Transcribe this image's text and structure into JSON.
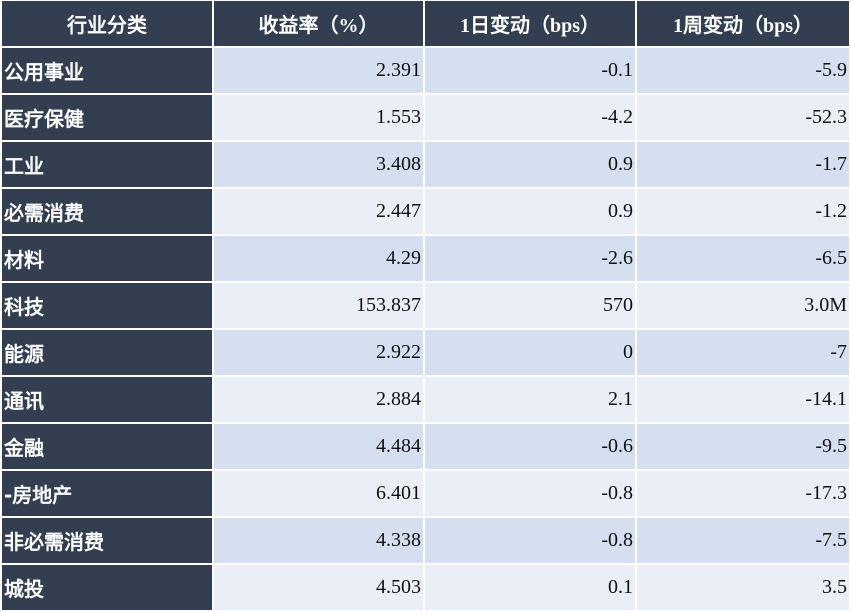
{
  "table": {
    "header": [
      "行业分类",
      "收益率（%）",
      "1日变动（bps）",
      "1周变动（bps）"
    ],
    "rows": [
      [
        "公用事业",
        "2.391",
        "-0.1",
        "-5.9"
      ],
      [
        "医疗保健",
        "1.553",
        "-4.2",
        "-52.3"
      ],
      [
        "工业",
        "3.408",
        "0.9",
        "-1.7"
      ],
      [
        "必需消费",
        "2.447",
        "0.9",
        "-1.2"
      ],
      [
        "材料",
        "4.29",
        "-2.6",
        "-6.5"
      ],
      [
        "科技",
        "153.837",
        "570",
        "3.0M"
      ],
      [
        "能源",
        "2.922",
        "0",
        "-7"
      ],
      [
        "通讯",
        "2.884",
        "2.1",
        "-14.1"
      ],
      [
        "金融",
        "4.484",
        "-0.6",
        "-9.5"
      ],
      [
        "-房地产",
        "6.401",
        "-0.8",
        "-17.3"
      ],
      [
        "非必需消费",
        "4.338",
        "-0.8",
        "-7.5"
      ],
      [
        "城投",
        "4.503",
        "0.1",
        "3.5"
      ]
    ]
  }
}
